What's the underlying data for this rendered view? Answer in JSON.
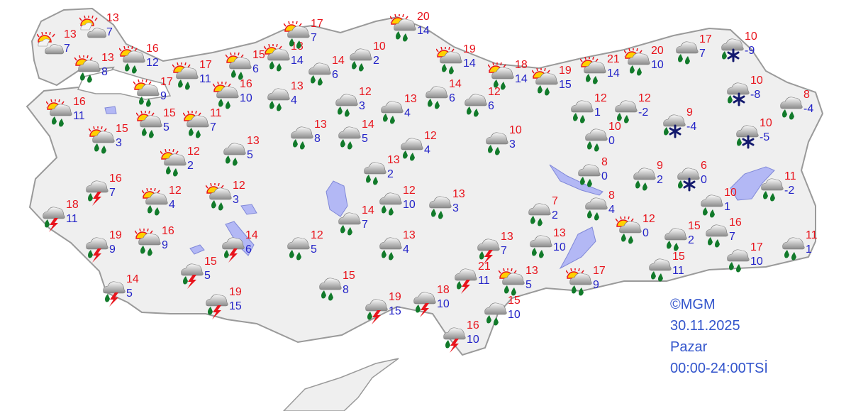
{
  "credits": {
    "source": "©MGM",
    "date": "30.11.2025",
    "day": "Pazar",
    "period": "00:00-24:00TSİ"
  },
  "colors": {
    "high_temp": "#e8141c",
    "low_temp": "#2323c8",
    "land": "#efefef",
    "border": "#9a9a9a",
    "water": "#b3b8f5"
  },
  "stations": [
    {
      "weather": "partly-cloudy",
      "high": "13",
      "low": "7"
    },
    {
      "weather": "partly-cloudy",
      "high": "13",
      "low": "7"
    },
    {
      "weather": "sun-rain",
      "high": "13",
      "low": "8"
    },
    {
      "weather": "sun-rain",
      "high": "16",
      "low": "12"
    },
    {
      "weather": "sun-rain",
      "high": "16",
      "low": "11"
    },
    {
      "weather": "sun-rain",
      "high": "17",
      "low": "9"
    },
    {
      "weather": "sun-rain",
      "high": "17",
      "low": "11"
    },
    {
      "weather": "sun-rain",
      "high": "15",
      "low": "6"
    },
    {
      "weather": "sun-rain",
      "high": "18",
      "low": "14"
    },
    {
      "weather": "sun-rain",
      "high": "17",
      "low": "7"
    },
    {
      "weather": "rain",
      "high": "14",
      "low": "6"
    },
    {
      "weather": "rain",
      "high": "10",
      "low": "2"
    },
    {
      "weather": "sun-rain",
      "high": "16",
      "low": "10"
    },
    {
      "weather": "rain",
      "high": "13",
      "low": "4"
    },
    {
      "weather": "rain",
      "high": "12",
      "low": "3"
    },
    {
      "weather": "sun-rain",
      "high": "15",
      "low": "3"
    },
    {
      "weather": "sun-rain",
      "high": "15",
      "low": "5"
    },
    {
      "weather": "sun-rain",
      "high": "11",
      "low": "7"
    },
    {
      "weather": "rain",
      "high": "13",
      "low": "8"
    },
    {
      "weather": "rain",
      "high": "14",
      "low": "5"
    },
    {
      "weather": "rain",
      "high": "13",
      "low": "4"
    },
    {
      "weather": "sun-rain",
      "high": "20",
      "low": "14"
    },
    {
      "weather": "sun-rain",
      "high": "19",
      "low": "14"
    },
    {
      "weather": "rain",
      "high": "14",
      "low": "6"
    },
    {
      "weather": "rain",
      "high": "12",
      "low": "6"
    },
    {
      "weather": "sun-rain",
      "high": "18",
      "low": "14"
    },
    {
      "weather": "sun-rain",
      "high": "19",
      "low": "15"
    },
    {
      "weather": "sun-rain",
      "high": "21",
      "low": "14"
    },
    {
      "weather": "sun-rain",
      "high": "20",
      "low": "10"
    },
    {
      "weather": "rain",
      "high": "17",
      "low": "7"
    },
    {
      "weather": "rain-snow",
      "high": "10",
      "low": "-9"
    },
    {
      "weather": "rain-snow",
      "high": "10",
      "low": "-8"
    },
    {
      "weather": "rain",
      "high": "8",
      "low": "-4"
    },
    {
      "weather": "rain",
      "high": "12",
      "low": "1"
    },
    {
      "weather": "rain",
      "high": "12",
      "low": "-2"
    },
    {
      "weather": "rain-snow",
      "high": "9",
      "low": "-4"
    },
    {
      "weather": "rain-snow",
      "high": "10",
      "low": "-5"
    },
    {
      "weather": "rain",
      "high": "10",
      "low": "3"
    },
    {
      "weather": "rain",
      "high": "10",
      "low": "0"
    },
    {
      "weather": "rain",
      "high": "13",
      "low": "5"
    },
    {
      "weather": "sun-rain",
      "high": "12",
      "low": "2"
    },
    {
      "weather": "rain",
      "high": "12",
      "low": "4"
    },
    {
      "weather": "rain",
      "high": "13",
      "low": "2"
    },
    {
      "weather": "rain",
      "high": "8",
      "low": "0"
    },
    {
      "weather": "rain",
      "high": "9",
      "low": "2"
    },
    {
      "weather": "rain-snow",
      "high": "6",
      "low": "0"
    },
    {
      "weather": "rain",
      "high": "11",
      "low": "-2"
    },
    {
      "weather": "thunderstorm",
      "high": "16",
      "low": "7"
    },
    {
      "weather": "sun-rain",
      "high": "12",
      "low": "4"
    },
    {
      "weather": "sun-rain",
      "high": "12",
      "low": "3"
    },
    {
      "weather": "rain",
      "high": "12",
      "low": "10"
    },
    {
      "weather": "rain",
      "high": "13",
      "low": "3"
    },
    {
      "weather": "rain",
      "high": "10",
      "low": "1"
    },
    {
      "weather": "rain",
      "high": "7",
      "low": "2"
    },
    {
      "weather": "rain",
      "high": "8",
      "low": "4"
    },
    {
      "weather": "thunderstorm",
      "high": "18",
      "low": "11"
    },
    {
      "weather": "rain",
      "high": "14",
      "low": "7"
    },
    {
      "weather": "thunderstorm",
      "high": "19",
      "low": "9"
    },
    {
      "weather": "sun-rain",
      "high": "16",
      "low": "9"
    },
    {
      "weather": "thunderstorm",
      "high": "14",
      "low": "6"
    },
    {
      "weather": "rain",
      "high": "12",
      "low": "5"
    },
    {
      "weather": "rain",
      "high": "13",
      "low": "4"
    },
    {
      "weather": "thunderstorm",
      "high": "13",
      "low": "7"
    },
    {
      "weather": "rain",
      "high": "13",
      "low": "10"
    },
    {
      "weather": "sun-rain",
      "high": "12",
      "low": "0"
    },
    {
      "weather": "rain",
      "high": "15",
      "low": "2"
    },
    {
      "weather": "rain",
      "high": "16",
      "low": "7"
    },
    {
      "weather": "rain",
      "high": "11",
      "low": "1"
    },
    {
      "weather": "thunderstorm",
      "high": "15",
      "low": "5"
    },
    {
      "weather": "thunderstorm",
      "high": "21",
      "low": "11"
    },
    {
      "weather": "sun-rain",
      "high": "13",
      "low": "5"
    },
    {
      "weather": "sun-rain",
      "high": "17",
      "low": "9"
    },
    {
      "weather": "rain",
      "high": "15",
      "low": "11"
    },
    {
      "weather": "rain",
      "high": "17",
      "low": "10"
    },
    {
      "weather": "thunderstorm",
      "high": "14",
      "low": "5"
    },
    {
      "weather": "thunderstorm",
      "high": "19",
      "low": "15"
    },
    {
      "weather": "rain",
      "high": "15",
      "low": "8"
    },
    {
      "weather": "thunderstorm",
      "high": "19",
      "low": "15"
    },
    {
      "weather": "thunderstorm",
      "high": "18",
      "low": "10"
    },
    {
      "weather": "rain",
      "high": "15",
      "low": "10"
    },
    {
      "weather": "thunderstorm",
      "high": "16",
      "low": "10"
    }
  ]
}
